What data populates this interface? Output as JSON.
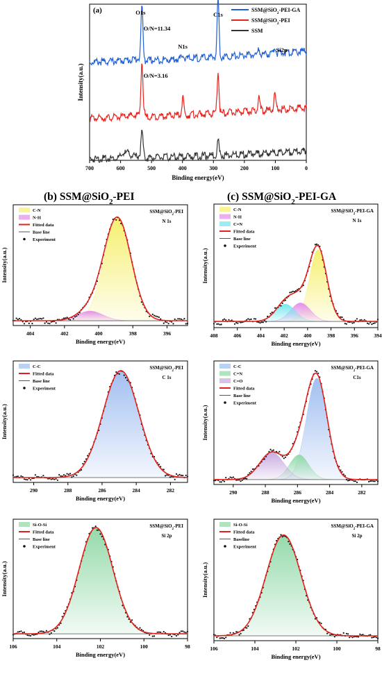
{
  "colors": {
    "blue": "#1f5fd6",
    "red": "#e8231e",
    "black": "#333333",
    "fit": "#e3201b"
  },
  "chart_data": [
    {
      "id": "a",
      "type": "line",
      "panel_label": "(a)",
      "xlabel": "Binding energy(eV)",
      "ylabel": "Intensity(a.u.)",
      "xlim": [
        700,
        0
      ],
      "xticks": [
        700,
        600,
        500,
        400,
        300,
        200,
        100,
        0
      ],
      "legend": {
        "position": "top-right",
        "entries": [
          {
            "name_pre": "SSM@SiO",
            "name_sub": "2",
            "name_post": "-PEI-GA",
            "color": "blue"
          },
          {
            "name_pre": "SSM@SiO",
            "name_sub": "2",
            "name_post": "-PEI",
            "color": "red"
          },
          {
            "name_pre": "SSM",
            "name_sub": "",
            "name_post": "",
            "color": "black"
          }
        ]
      },
      "peak_labels": [
        {
          "text": "O1s",
          "x": 531,
          "offset": 0.0
        },
        {
          "text": "C1s",
          "x": 285,
          "offset": 0.0
        },
        {
          "text": "N1s",
          "x": 399,
          "offset": 0.0
        },
        {
          "text": "Si2p",
          "x": 102,
          "offset": 0.0
        }
      ],
      "annotations": [
        {
          "text": "O/N=11.34",
          "series": 0,
          "x": 530
        },
        {
          "text": "O/N=3.16",
          "series": 1,
          "x": 530
        }
      ],
      "series": [
        {
          "name": "SSM@SiO2-PEI-GA",
          "color": "blue",
          "baseline_left": 0.64,
          "baseline_right": 0.71,
          "peaks": [
            [
              531,
              0.34,
              3
            ],
            [
              285,
              0.38,
              3
            ],
            [
              399,
              0.035,
              3
            ],
            [
              102,
              0.045,
              3
            ],
            [
              153,
              0.03,
              3
            ],
            [
              975,
              0,
              1
            ]
          ]
        },
        {
          "name": "SSM@SiO2-PEI",
          "color": "red",
          "baseline_left": 0.28,
          "baseline_right": 0.35,
          "peaks": [
            [
              531,
              0.35,
              3
            ],
            [
              285,
              0.27,
              3
            ],
            [
              399,
              0.11,
              3
            ],
            [
              102,
              0.1,
              3
            ],
            [
              153,
              0.095,
              3
            ],
            [
              977,
              0,
              1
            ]
          ]
        },
        {
          "name": "SSM",
          "color": "black",
          "baseline_left": 0.02,
          "baseline_right": 0.07,
          "peaks": [
            [
              531,
              0.16,
              3
            ],
            [
              285,
              0.1,
              3
            ],
            [
              575,
              0.025,
              8
            ],
            [
              590,
              0.025,
              6
            ]
          ]
        }
      ]
    },
    {
      "id": "b-n1s",
      "type": "line",
      "panel_label": "(b) SSM@SiO",
      "panel_label_sub": "2",
      "panel_label_post": "-PEI",
      "title_pre": "SSM@SiO",
      "title_sub": "2",
      "title_post": "-PEI",
      "title2": "N 1s",
      "xlabel": "Binding energy(eV)",
      "ylabel": "Intensity(a.u.)",
      "xlim": [
        405,
        394.8
      ],
      "xticks": [
        404,
        402,
        400,
        398,
        396
      ],
      "baseline": 0.04,
      "components": [
        {
          "name": "C-N",
          "center": 398.9,
          "height": 0.85,
          "width": 0.8,
          "fill": "#f6ef6a"
        },
        {
          "name": "N-H",
          "center": 400.5,
          "height": 0.08,
          "width": 0.75,
          "fill": "#e28be8"
        }
      ],
      "legend": {
        "position": "top-left",
        "entries": [
          "C-N",
          "N-H",
          "Fitted data",
          "Base line",
          "Experiment"
        ]
      }
    },
    {
      "id": "c-n1s",
      "type": "line",
      "panel_label": "(c) SSM@SiO",
      "panel_label_sub": "2",
      "panel_label_post": "-PEI-GA",
      "title_pre": "SSM@SiO",
      "title_sub": "2",
      "title_post": "-PEI-GA",
      "title2": "N 1s",
      "xlabel": "Binding energy(eV)",
      "ylabel": "Intensity(a.u.)",
      "xlim": [
        408,
        394
      ],
      "xticks": [
        408,
        406,
        404,
        402,
        400,
        398,
        396,
        394
      ],
      "baseline": 0.05,
      "components": [
        {
          "name": "C-N",
          "center": 399.1,
          "height": 0.58,
          "width": 0.75,
          "fill": "#f6ef6a"
        },
        {
          "name": "N-H",
          "center": 400.6,
          "height": 0.15,
          "width": 0.85,
          "fill": "#e28be8"
        },
        {
          "name": "C=N",
          "center": 401.9,
          "height": 0.14,
          "width": 0.85,
          "fill": "#6fe6ee"
        }
      ],
      "legend": {
        "position": "top-left",
        "entries": [
          "C-N",
          "N-H",
          "C=N",
          "Fitted data",
          "Base line",
          "Experiment"
        ]
      }
    },
    {
      "id": "b-c1s",
      "type": "line",
      "title_pre": "SSM@SiO",
      "title_sub": "2",
      "title_post": "-PEI",
      "title2": "C 1s",
      "xlabel": "Binding energy(eV)",
      "ylabel": "Intensity(a.u.)",
      "xlim": [
        291.2,
        281
      ],
      "xticks": [
        290,
        288,
        286,
        284,
        282
      ],
      "baseline": 0.04,
      "components": [
        {
          "name": "C-C",
          "center": 284.9,
          "height": 0.88,
          "width": 1.05,
          "fill": "#9dbcf0"
        }
      ],
      "legend": {
        "position": "top-left",
        "entries": [
          "C-C",
          "Fitted data",
          "Base line",
          "Experiment"
        ]
      }
    },
    {
      "id": "c-c1s",
      "type": "line",
      "title_pre": "SSM@SiO",
      "title_sub": "2",
      "title_post": "-PEI-GA",
      "title2": "C1s",
      "xlabel": "Binding energy(eV)",
      "ylabel": "Intensity(a.u.)",
      "xlim": [
        291.2,
        281
      ],
      "xticks": [
        290,
        288,
        286,
        284,
        282
      ],
      "baseline": 0.04,
      "components": [
        {
          "name": "C-C",
          "center": 284.8,
          "height": 0.82,
          "width": 0.65,
          "fill": "#9dbcf0"
        },
        {
          "name": "C=N",
          "center": 285.9,
          "height": 0.2,
          "width": 0.6,
          "fill": "#8fd8a6"
        },
        {
          "name": "C=O",
          "center": 287.6,
          "height": 0.22,
          "width": 0.75,
          "fill": "#c6a8e0"
        }
      ],
      "legend": {
        "position": "top-left",
        "entries": [
          "C-C",
          "C=N",
          "C=O",
          "Fitted data",
          "Base line",
          "Experiment"
        ]
      }
    },
    {
      "id": "b-si2p",
      "type": "line",
      "title_pre": "SSM@SiO",
      "title_sub": "2",
      "title_post": "-PEI",
      "title2": "Si 2p",
      "xlabel": "Binding energy(eV)",
      "ylabel": "Intensity(a.u.)",
      "xlim": [
        106,
        98
      ],
      "xticks": [
        106,
        104,
        102,
        100,
        98
      ],
      "baseline": 0.04,
      "components": [
        {
          "name": "Si-O-Si",
          "center": 102.2,
          "height": 0.89,
          "width": 0.78,
          "fill": "#8fd8a6"
        }
      ],
      "legend": {
        "position": "top-left",
        "entries": [
          "Si-O-Si",
          "Fitted data",
          "Base line",
          "Experiment"
        ]
      }
    },
    {
      "id": "c-si2p",
      "type": "line",
      "title_pre": "SSM@SiO",
      "title_sub": "2",
      "title_post": "-PEI-GA",
      "title2": "Si 2p",
      "xlabel": "Binding energy(eV)",
      "ylabel": "Intensity(a.u.)",
      "xlim": [
        106,
        98
      ],
      "xticks": [
        106,
        104,
        102,
        100,
        98
      ],
      "baseline": 0.04,
      "components": [
        {
          "name": "Si-O-Si",
          "center": 102.6,
          "height": 0.83,
          "width": 0.85,
          "fill": "#8fd8a6"
        }
      ],
      "legend": {
        "position": "top-left",
        "entries": [
          "Si-O-Si",
          "Fitted data",
          "Baseline",
          "Experiment"
        ]
      }
    }
  ]
}
